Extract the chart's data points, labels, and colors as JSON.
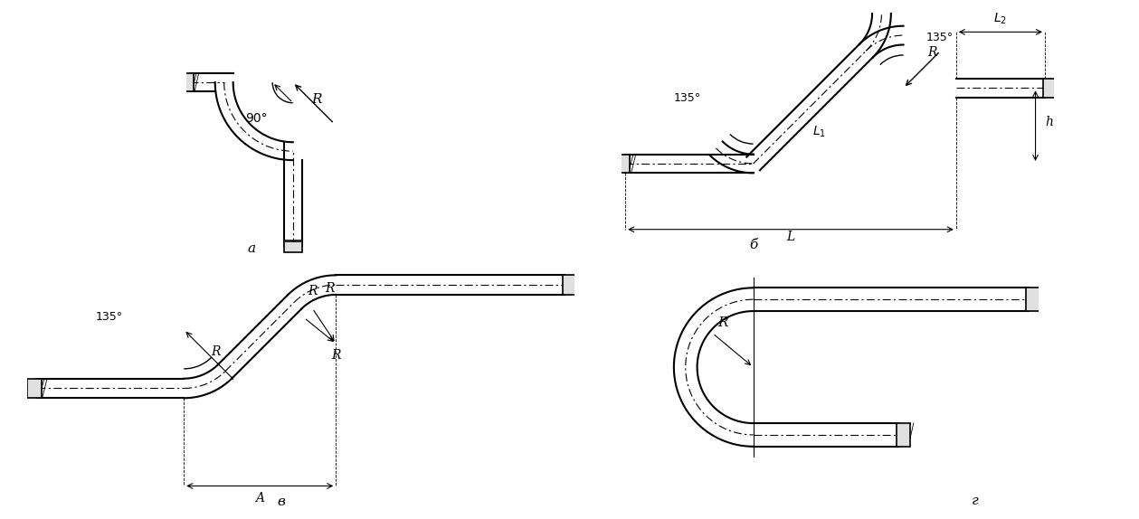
{
  "bg_color": "#ffffff",
  "line_color": "#000000",
  "dash_color": "#555555",
  "hatch_color": "#888888",
  "fig_width": 12.59,
  "fig_height": 5.74,
  "labels": {
    "a": "а",
    "b": "б",
    "v": "в",
    "g": "г"
  }
}
